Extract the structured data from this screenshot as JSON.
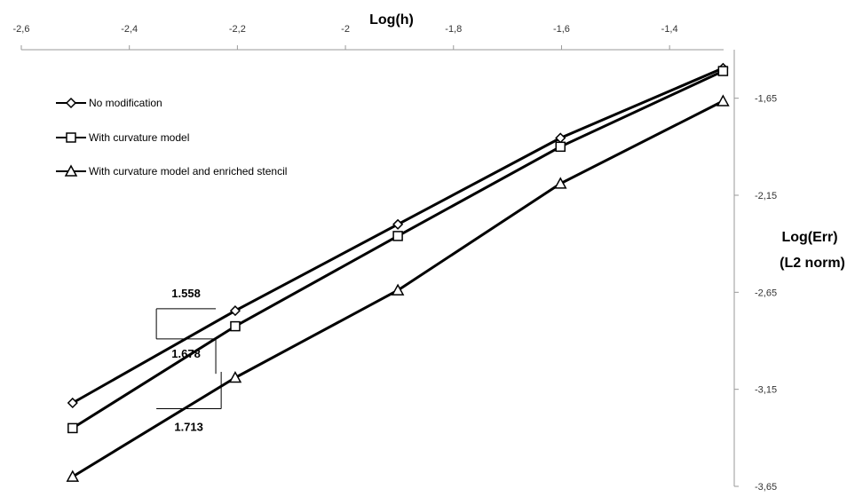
{
  "chart_data": {
    "type": "line",
    "xlabel": "Log(h)",
    "ylabel_lines": [
      "Log(Err)",
      "(L2 norm)"
    ],
    "xlim": [
      -2.6,
      -1.3
    ],
    "ylim": [
      -3.65,
      -1.4
    ],
    "x_ticks": [
      -2.6,
      -2.4,
      -2.2,
      -2.0,
      -1.8,
      -1.6,
      -1.4
    ],
    "x_tick_labels": [
      "-2,6",
      "-2,4",
      "-2,2",
      "-2",
      "-1,8",
      "-1,6",
      "-1,4"
    ],
    "y_ticks": [
      -1.65,
      -2.15,
      -2.65,
      -3.15,
      -3.65
    ],
    "y_tick_labels": [
      "-1,65",
      "-2,15",
      "-2,65",
      "-3,15",
      "-3,65"
    ],
    "x_axis_position": "top",
    "y_axis_position": "right",
    "grid": false,
    "legend_position": "top-left",
    "line_color": "#000000",
    "series": [
      {
        "name": "No modification",
        "marker": "diamond",
        "x": [
          -2.505,
          -2.204,
          -1.903,
          -1.602,
          -1.301
        ],
        "y": [
          -3.22,
          -2.745,
          -2.3,
          -1.855,
          -1.495
        ]
      },
      {
        "name": "With curvature model",
        "marker": "square",
        "x": [
          -2.505,
          -2.204,
          -1.903,
          -1.602,
          -1.301
        ],
        "y": [
          -3.35,
          -2.825,
          -2.36,
          -1.9,
          -1.51
        ]
      },
      {
        "name": "With curvature model and enriched stencil",
        "marker": "triangle",
        "x": [
          -2.505,
          -2.204,
          -1.903,
          -1.602,
          -1.301
        ],
        "y": [
          -3.6,
          -3.09,
          -2.64,
          -2.09,
          -1.665
        ]
      }
    ],
    "slope_annotations": [
      {
        "label": "1.558",
        "run": [
          -2.35,
          -2.24
        ],
        "rise": [
          -2.89,
          -2.735
        ]
      },
      {
        "label": "1.678",
        "run": [
          -2.35,
          -2.24
        ],
        "rise": [
          -2.89,
          -3.07
        ]
      },
      {
        "label": "1.713",
        "run": [
          -2.35,
          -2.23
        ],
        "rise": [
          -3.25,
          -3.06
        ]
      }
    ]
  }
}
